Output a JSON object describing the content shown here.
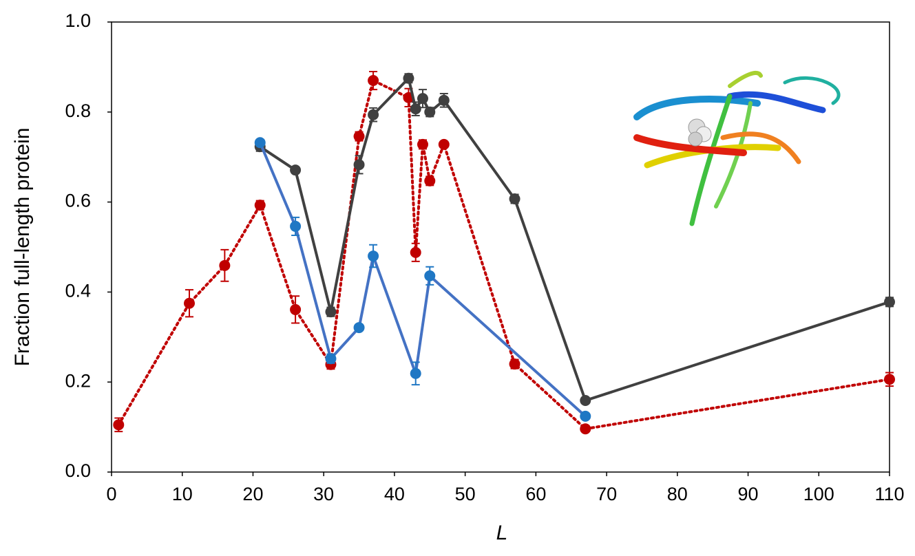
{
  "chart_data": {
    "type": "line",
    "xlabel": "L",
    "ylabel": "Fraction full-length protein",
    "xlim": [
      0,
      110
    ],
    "xticks": [
      0,
      10,
      20,
      30,
      40,
      50,
      60,
      70,
      80,
      90,
      100,
      110
    ],
    "ylim": [
      0,
      1
    ],
    "yticks": [
      {
        "value": 0,
        "label": "0.0"
      },
      0.2,
      0.4,
      0.6,
      0.8,
      {
        "value": 1,
        "label": "1.0"
      }
    ],
    "grid": false,
    "series": [
      {
        "color": "#c00000",
        "line_style": "dotted",
        "x": [
          1,
          11,
          16,
          21,
          26,
          31,
          35,
          37,
          42,
          43,
          44,
          45,
          47,
          57,
          67,
          110
        ],
        "values": [
          0.105,
          0.375,
          0.459,
          0.593,
          0.361,
          0.239,
          0.746,
          0.87,
          0.832,
          0.488,
          0.728,
          0.647,
          0.728,
          0.24,
          0.096,
          0.206
        ],
        "errors": [
          0.015,
          0.03,
          0.035,
          0.01,
          0.03,
          0.01,
          0.01,
          0.02,
          0.02,
          0.02,
          0.01,
          0.01,
          0.005,
          0.01,
          0.005,
          0.015
        ]
      },
      {
        "color": "#404040",
        "line_style": "solid",
        "x": [
          21,
          26,
          31,
          35,
          37,
          42,
          43,
          44,
          45,
          47,
          57,
          67,
          110
        ],
        "values": [
          0.723,
          0.671,
          0.356,
          0.683,
          0.794,
          0.875,
          0.807,
          0.83,
          0.8,
          0.826,
          0.607,
          0.159,
          0.378
        ],
        "errors": [
          0.01,
          0.005,
          0.01,
          0.02,
          0.015,
          0.01,
          0.015,
          0.02,
          0.01,
          0.015,
          0.01,
          0.005,
          0.01
        ]
      },
      {
        "color": "#4472c4",
        "marker_color": "#1f77c4",
        "line_style": "solid",
        "x": [
          21,
          26,
          31,
          35,
          37,
          43,
          45,
          67
        ],
        "values": [
          0.732,
          0.546,
          0.252,
          0.321,
          0.48,
          0.219,
          0.436,
          0.124
        ],
        "errors": [
          0.005,
          0.02,
          0.01,
          0.005,
          0.025,
          0.025,
          0.02,
          0.005
        ]
      }
    ]
  }
}
